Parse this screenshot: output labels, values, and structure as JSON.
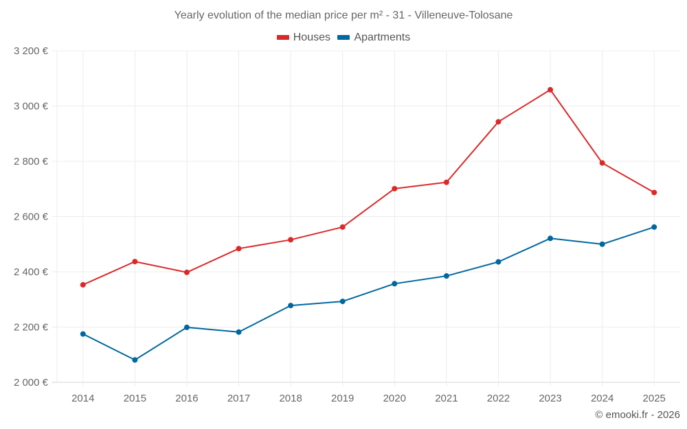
{
  "chart_data": {
    "type": "line",
    "title": "Yearly evolution of the median price per m² - 31 - Villeneuve-Tolosane",
    "xlabel": "",
    "ylabel": "",
    "categories": [
      "2014",
      "2015",
      "2016",
      "2017",
      "2018",
      "2019",
      "2020",
      "2021",
      "2022",
      "2023",
      "2024",
      "2025"
    ],
    "series": [
      {
        "name": "Houses",
        "color": "#dc2828",
        "values": [
          2353,
          2437,
          2398,
          2484,
          2516,
          2562,
          2701,
          2724,
          2943,
          3059,
          2794,
          2687
        ]
      },
      {
        "name": "Apartments",
        "color": "#0068a0",
        "values": [
          2175,
          2081,
          2199,
          2182,
          2278,
          2293,
          2357,
          2385,
          2436,
          2521,
          2500,
          2562
        ]
      }
    ],
    "ylim": [
      2000,
      3200
    ],
    "yticks": [
      2000,
      2200,
      2400,
      2600,
      2800,
      3000,
      3200
    ],
    "ytick_labels": [
      "2 000 €",
      "2 200 €",
      "2 400 €",
      "2 600 €",
      "2 800 €",
      "3 000 €",
      "3 200 €"
    ],
    "grid": true,
    "legend_position": "top-center"
  },
  "legend": {
    "items": [
      {
        "label": "Houses",
        "color": "#dc2828"
      },
      {
        "label": "Apartments",
        "color": "#0068a0"
      }
    ]
  },
  "credit": "© emooki.fr - 2026"
}
